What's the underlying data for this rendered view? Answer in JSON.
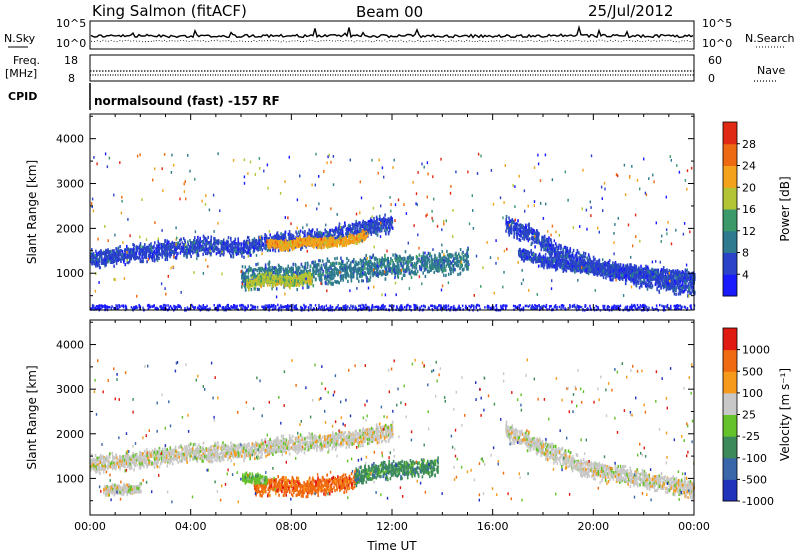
{
  "header": {
    "station": "King Salmon (fitACF)",
    "beam": "Beam 00",
    "date": "25/Jul/2012"
  },
  "top_panels": {
    "nsky": {
      "label": "N.Sky",
      "ticks": [
        "10^5",
        "10^0"
      ]
    },
    "nsearch": {
      "label": "N.Search",
      "ticks": [
        "10^5",
        "10^0"
      ]
    },
    "freq": {
      "label_line1": "Freq.",
      "label_line2": "[MHz]",
      "ticks": [
        "18",
        "8"
      ]
    },
    "nave": {
      "label": "Nave",
      "ticks": [
        "60",
        "0"
      ]
    },
    "cpid": {
      "label": "CPID",
      "text": "normalsound (fast) -157 RF"
    }
  },
  "chart_data": [
    {
      "type": "heatmap",
      "name": "power",
      "ylabel": "Slant Range [km]",
      "xlabel": "",
      "xlim": [
        0,
        24
      ],
      "ylim": [
        180,
        4550
      ],
      "yticks": [
        "1000",
        "2000",
        "3000",
        "4000"
      ],
      "ytick_values": [
        1000,
        2000,
        3000,
        4000
      ],
      "colorbar": {
        "label": "Power [dB]",
        "ticks": [
          "4",
          "8",
          "12",
          "16",
          "20",
          "24",
          "28"
        ],
        "colors": [
          "#1a1aff",
          "#2a43c8",
          "#2f7a8e",
          "#3c9a6a",
          "#b3c434",
          "#f2a31b",
          "#ee6a12",
          "#e02a14"
        ]
      },
      "bands": [
        {
          "x": [
            0.0,
            1.5,
            3.0,
            4.5,
            6.0,
            7.5,
            9.0,
            10.5,
            12.0
          ],
          "y": [
            1350,
            1450,
            1550,
            1650,
            1600,
            1750,
            1800,
            2000,
            2150
          ],
          "width": 220,
          "level": 1
        },
        {
          "x": [
            6.0,
            7.0,
            8.0,
            9.0,
            10.0,
            11.0,
            12.0,
            13.5,
            15.0
          ],
          "y": [
            900,
            1000,
            950,
            1050,
            1100,
            1150,
            1200,
            1250,
            1300
          ],
          "width": 300,
          "level": 2
        },
        {
          "x": [
            7.0,
            7.8,
            8.5,
            9.5,
            10.5,
            11.0
          ],
          "y": [
            1700,
            1650,
            1750,
            1700,
            1800,
            1900
          ],
          "width": 120,
          "level": 5
        },
        {
          "x": [
            6.2,
            7.0,
            8.0,
            8.8
          ],
          "y": [
            800,
            900,
            850,
            950
          ],
          "width": 150,
          "level": 4
        },
        {
          "x": [
            16.5,
            17.5,
            18.5,
            20.0,
            22.0,
            24.0
          ],
          "y": [
            2100,
            1900,
            1500,
            1200,
            900,
            700
          ],
          "width": 220,
          "level": 1
        },
        {
          "x": [
            17.0,
            18.0,
            19.0,
            21.0,
            23.0,
            24.0
          ],
          "y": [
            1500,
            1300,
            1200,
            1100,
            1000,
            950
          ],
          "width": 150,
          "level": 1
        }
      ],
      "ground_band": {
        "y": [
          200,
          320
        ],
        "level": 0
      }
    },
    {
      "type": "heatmap",
      "name": "velocity",
      "ylabel": "Slant Range [km]",
      "xlabel": "Time UT",
      "xlim": [
        0,
        24
      ],
      "ylim": [
        180,
        4550
      ],
      "yticks": [
        "1000",
        "2000",
        "3000",
        "4000"
      ],
      "ytick_values": [
        1000,
        2000,
        3000,
        4000
      ],
      "xticks": [
        "00:00",
        "04:00",
        "08:00",
        "12:00",
        "16:00",
        "20:00",
        "00:00"
      ],
      "xtick_values": [
        0,
        4,
        8,
        12,
        16,
        20,
        24
      ],
      "colorbar": {
        "label": "Velocity [m s⁻¹]",
        "ticks": [
          "1000",
          "500",
          "100",
          "25",
          "-25",
          "-100",
          "-500",
          "-1000"
        ],
        "colors": [
          "#2233bb",
          "#3a66aa",
          "#3c8a5a",
          "#66c22a",
          "#c8c8c8",
          "#f59a1a",
          "#f06a10",
          "#e01a10"
        ]
      },
      "bands": [
        {
          "x": [
            0.0,
            2.0,
            4.0,
            6.0,
            8.0,
            10.0,
            12.0
          ],
          "y": [
            1350,
            1450,
            1600,
            1650,
            1800,
            1900,
            2100
          ],
          "width": 220,
          "level": 4
        },
        {
          "x": [
            6.5,
            7.5,
            8.5,
            9.5,
            10.5
          ],
          "y": [
            850,
            880,
            820,
            900,
            950
          ],
          "width": 220,
          "level": 6
        },
        {
          "x": [
            10.5,
            11.5,
            12.5,
            13.8
          ],
          "y": [
            1050,
            1200,
            1250,
            1300
          ],
          "width": 220,
          "level": 2
        },
        {
          "x": [
            6.0,
            7.0
          ],
          "y": [
            1050,
            1000
          ],
          "width": 120,
          "level": 3
        },
        {
          "x": [
            16.5,
            18.0,
            19.5,
            22.0,
            24.0
          ],
          "y": [
            2100,
            1700,
            1300,
            1000,
            800
          ],
          "width": 220,
          "level": 4
        },
        {
          "x": [
            0.5,
            1.5,
            2.0
          ],
          "y": [
            780,
            790,
            800
          ],
          "width": 120,
          "level": 4
        }
      ]
    }
  ]
}
